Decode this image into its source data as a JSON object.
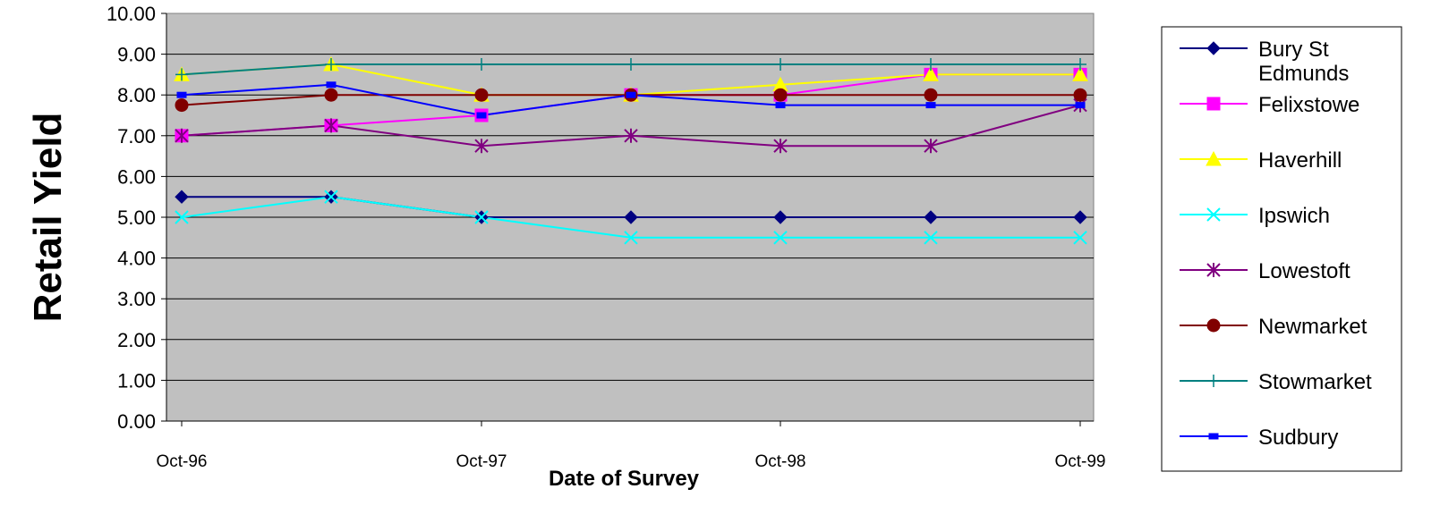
{
  "chart_data": {
    "type": "line",
    "title": "",
    "xlabel": "Date of Survey",
    "ylabel": "Retail Yield",
    "ylim": [
      0,
      10
    ],
    "ytick_labels": [
      "0.00",
      "1.00",
      "2.00",
      "3.00",
      "4.00",
      "5.00",
      "6.00",
      "7.00",
      "8.00",
      "9.00",
      "10.00"
    ],
    "xtick_labels": [
      "Oct-96",
      "Oct-97",
      "Oct-98",
      "Oct-99"
    ],
    "x": [
      "Oct-96",
      "Apr-97",
      "Oct-97",
      "Apr-98",
      "Oct-98",
      "Apr-99",
      "Oct-99"
    ],
    "grid": true,
    "legend_position": "right",
    "series": [
      {
        "name": "Bury St Edmunds",
        "name_lines": [
          "Bury St",
          "Edmunds"
        ],
        "color": "#000080",
        "marker": "diamond",
        "values": [
          5.5,
          5.5,
          5.0,
          5.0,
          5.0,
          5.0,
          5.0
        ]
      },
      {
        "name": "Felixstowe",
        "name_lines": [
          "Felixstowe"
        ],
        "color": "#ff00ff",
        "marker": "square",
        "values": [
          7.0,
          7.25,
          7.5,
          8.0,
          8.0,
          8.5,
          8.5
        ]
      },
      {
        "name": "Haverhill",
        "name_lines": [
          "Haverhill"
        ],
        "color": "#ffff00",
        "marker": "triangle",
        "values": [
          8.5,
          8.75,
          8.0,
          8.0,
          8.25,
          8.5,
          8.5
        ]
      },
      {
        "name": "Ipswich",
        "name_lines": [
          "Ipswich"
        ],
        "color": "#00ffff",
        "marker": "x",
        "values": [
          5.0,
          5.5,
          5.0,
          4.5,
          4.5,
          4.5,
          4.5
        ]
      },
      {
        "name": "Lowestoft",
        "name_lines": [
          "Lowestoft"
        ],
        "color": "#800080",
        "marker": "star",
        "values": [
          7.0,
          7.25,
          6.75,
          7.0,
          6.75,
          6.75,
          7.75
        ]
      },
      {
        "name": "Newmarket",
        "name_lines": [
          "Newmarket"
        ],
        "color": "#800000",
        "marker": "circle",
        "values": [
          7.75,
          8.0,
          8.0,
          8.0,
          8.0,
          8.0,
          8.0
        ]
      },
      {
        "name": "Stowmarket",
        "name_lines": [
          "Stowmarket"
        ],
        "color": "#008080",
        "marker": "plus",
        "values": [
          8.5,
          8.75,
          8.75,
          8.75,
          8.75,
          8.75,
          8.75
        ]
      },
      {
        "name": "Sudbury",
        "name_lines": [
          "Sudbury"
        ],
        "color": "#0000ff",
        "marker": "dash",
        "values": [
          8.0,
          8.25,
          7.5,
          8.0,
          7.75,
          7.75,
          7.75
        ]
      }
    ]
  },
  "colors": {
    "plot_background": "#c0c0c0",
    "gridline": "#000000",
    "legend_background": "#ffffff"
  }
}
